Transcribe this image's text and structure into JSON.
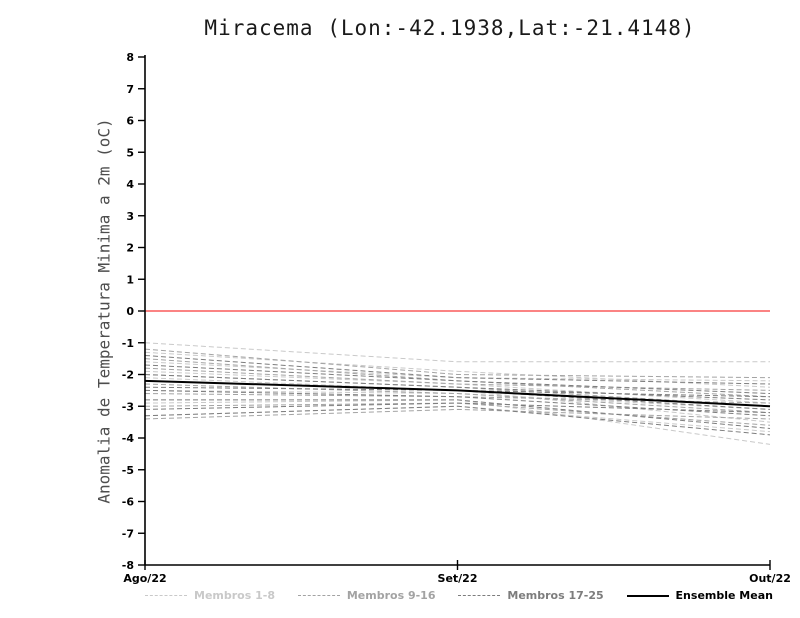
{
  "chart_data": {
    "type": "line",
    "title": "Miracema (Lon:-42.1938,Lat:-21.4148)",
    "ylabel": "Anomalia de Temperatura Minima a 2m (oC)",
    "x_categories": [
      "Ago/22",
      "Set/22",
      "Out/22"
    ],
    "ylim": [
      -8,
      8
    ],
    "ytick_step": 1,
    "grid": false,
    "legend_position": "bottom",
    "zero_line": {
      "y": 0,
      "color": "#fa5a5a"
    },
    "groups": [
      {
        "name": "Membros 1-8",
        "color": "#c9c9c9",
        "dash": "5,3",
        "members": [
          [
            -1.0,
            -1.6,
            -1.6
          ],
          [
            -1.3,
            -1.9,
            -2.4
          ],
          [
            -1.6,
            -2.1,
            -2.2
          ],
          [
            -1.9,
            -2.3,
            -2.9
          ],
          [
            -2.1,
            -2.5,
            -3.5
          ],
          [
            -2.5,
            -2.6,
            -3.1
          ],
          [
            -2.9,
            -2.8,
            -4.2
          ],
          [
            -3.3,
            -3.0,
            -3.8
          ]
        ]
      },
      {
        "name": "Membros 9-16",
        "color": "#a3a3a3",
        "dash": "5,3",
        "members": [
          [
            -1.2,
            -2.0,
            -2.1
          ],
          [
            -1.5,
            -2.2,
            -2.7
          ],
          [
            -1.8,
            -2.3,
            -2.5
          ],
          [
            -2.0,
            -2.4,
            -3.0
          ],
          [
            -2.3,
            -2.6,
            -3.2
          ],
          [
            -2.6,
            -2.7,
            -2.9
          ],
          [
            -3.0,
            -2.9,
            -3.6
          ],
          [
            -3.4,
            -3.1,
            -3.4
          ]
        ]
      },
      {
        "name": "Membros 17-25",
        "color": "#7d7d7d",
        "dash": "5,3",
        "members": [
          [
            -1.4,
            -2.1,
            -2.3
          ],
          [
            -1.7,
            -2.2,
            -2.6
          ],
          [
            -2.0,
            -2.4,
            -2.8
          ],
          [
            -2.2,
            -2.5,
            -3.1
          ],
          [
            -2.4,
            -2.5,
            -2.7
          ],
          [
            -2.5,
            -2.7,
            -3.3
          ],
          [
            -2.8,
            -2.8,
            -3.7
          ],
          [
            -3.1,
            -2.9,
            -3.2
          ],
          [
            -3.3,
            -3.0,
            -3.9
          ]
        ]
      }
    ],
    "mean": {
      "name": "Ensemble Mean",
      "color": "#000000",
      "values": [
        -2.2,
        -2.5,
        -3.0
      ]
    },
    "axis_color": "#000000",
    "tick_label_color": "#000000"
  }
}
